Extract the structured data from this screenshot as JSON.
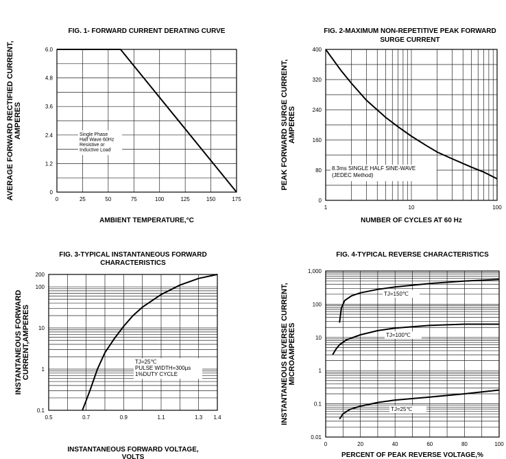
{
  "chart_data": [
    {
      "type": "line",
      "title": "FIG. 1- FORWARD CURRENT DERATING CURVE",
      "xlabel": "AMBIENT TEMPERATURE,°C",
      "ylabel_lines": [
        "AVERAGE FORWARD RECTIFIED CURRENT,",
        "AMPERES"
      ],
      "x_ticks": [
        "0",
        "25",
        "50",
        "75",
        "100",
        "125",
        "150",
        "175"
      ],
      "y_ticks": [
        "0",
        "1.2",
        "2.4",
        "3.6",
        "4.8",
        "6.0"
      ],
      "xlim": [
        0,
        175
      ],
      "ylim": [
        0,
        6.0
      ],
      "x_scale": "linear",
      "y_scale": "linear",
      "grid": true,
      "series": [
        {
          "x": [
            0,
            62,
            175
          ],
          "y": [
            6.0,
            6.0,
            0
          ]
        }
      ],
      "annotation": [
        "Single Phase",
        "Half Wave 60Hz",
        "Resistive or",
        "Inductive Load"
      ]
    },
    {
      "type": "line",
      "title_lines": [
        "FIG. 2-MAXIMUM NON-REPETITIVE PEAK FORWARD",
        "SURGE CURRENT"
      ],
      "xlabel": "NUMBER OF CYCLES AT 60 Hz",
      "ylabel_lines": [
        "PEAK FORWARD SURGE CURRENT,",
        "AMPERES"
      ],
      "x_ticks": [
        "1",
        "10",
        "100"
      ],
      "y_ticks": [
        "0",
        "80",
        "160",
        "240",
        "320",
        "400"
      ],
      "xlim": [
        1,
        100
      ],
      "ylim": [
        0,
        400
      ],
      "x_scale": "log",
      "y_scale": "linear",
      "grid": true,
      "series": [
        {
          "x": [
            1,
            1.5,
            2,
            3,
            5,
            7,
            10,
            15,
            20,
            30,
            50,
            70,
            100
          ],
          "y": [
            400,
            345,
            310,
            265,
            220,
            195,
            170,
            145,
            128,
            110,
            88,
            75,
            57
          ]
        }
      ],
      "annotation": [
        "8.3ms SINGLE HALF SINE-WAVE",
        "(JEDEC Method)"
      ]
    },
    {
      "type": "line",
      "title_lines": [
        "FIG. 3-TYPICAL INSTANTANEOUS FORWARD",
        "CHARACTERISTICS"
      ],
      "xlabel_lines": [
        "INSTANTANEOUS FORWARD VOLTAGE,",
        "VOLTS"
      ],
      "ylabel_lines": [
        "INSTANTANEOUS FORWARD",
        "CURRENT,AMPERES"
      ],
      "x_ticks": [
        "0.5",
        "0.7",
        "0.9",
        "1.1",
        "1.3",
        "1.4"
      ],
      "y_ticks": [
        "0.1",
        "1",
        "10",
        "100",
        "200"
      ],
      "xlim": [
        0.5,
        1.4
      ],
      "ylim": [
        0.1,
        200
      ],
      "x_scale": "linear",
      "y_scale": "log",
      "grid": true,
      "series": [
        {
          "x": [
            0.68,
            0.72,
            0.76,
            0.8,
            0.85,
            0.9,
            0.95,
            1.0,
            1.1,
            1.2,
            1.3,
            1.4
          ],
          "y": [
            0.1,
            0.3,
            1.0,
            2.5,
            5.5,
            11,
            20,
            32,
            65,
            110,
            160,
            200
          ]
        }
      ],
      "annotation": [
        "TJ=25℃",
        "PULSE WIDTH=300μs",
        "1%DUTY CYCLE"
      ]
    },
    {
      "type": "line",
      "title": "FIG. 4-TYPICAL REVERSE CHARACTERISTICS",
      "xlabel": "PERCENT OF PEAK REVERSE VOLTAGE,%",
      "ylabel_lines": [
        "INSTANTANEOUS REVERSE CURRENT,",
        "MICROAMPERES"
      ],
      "x_ticks": [
        "0",
        "20",
        "40",
        "60",
        "80",
        "100"
      ],
      "y_ticks": [
        "0.01",
        "0.1",
        "1",
        "10",
        "100",
        "1,000"
      ],
      "xlim": [
        0,
        100
      ],
      "ylim": [
        0.01,
        1000
      ],
      "x_scale": "linear",
      "y_scale": "log",
      "grid": true,
      "series": [
        {
          "name": "TJ=150℃",
          "x": [
            8,
            9,
            11,
            15,
            20,
            30,
            40,
            60,
            80,
            100
          ],
          "y": [
            28,
            75,
            130,
            180,
            220,
            280,
            330,
            420,
            500,
            560
          ]
        },
        {
          "name": "TJ=100℃",
          "x": [
            4,
            6,
            8,
            12,
            20,
            30,
            40,
            60,
            80,
            100
          ],
          "y": [
            3,
            4.5,
            6,
            8.5,
            12,
            16,
            19,
            23,
            25,
            25
          ]
        },
        {
          "name": "TJ=25℃",
          "x": [
            8,
            10,
            14,
            20,
            30,
            40,
            60,
            80,
            100
          ],
          "y": [
            0.035,
            0.05,
            0.068,
            0.085,
            0.11,
            0.13,
            0.16,
            0.2,
            0.26
          ]
        }
      ]
    }
  ]
}
